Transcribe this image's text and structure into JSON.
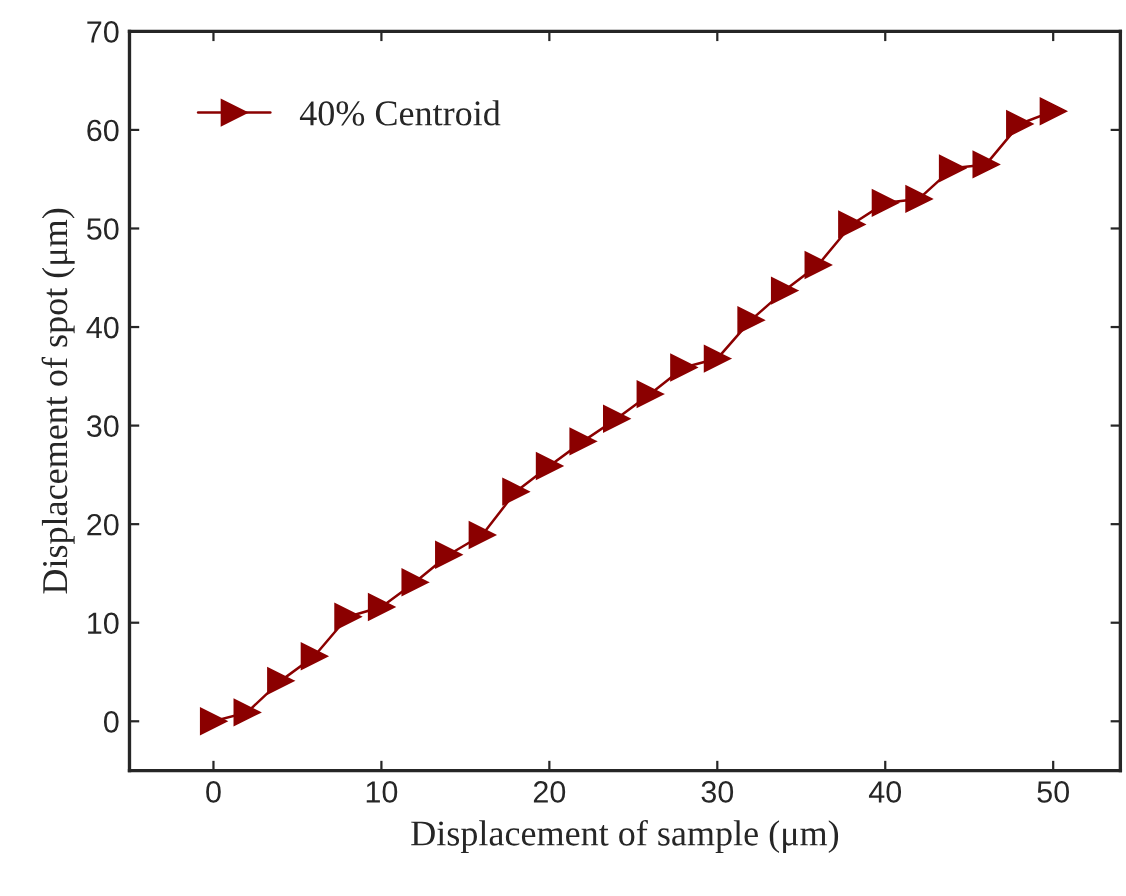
{
  "chart_data": {
    "type": "line",
    "xlabel": "Displacement of sample (μm)",
    "ylabel": "Displacement of spot (μm)",
    "x": [
      0,
      2,
      4,
      6,
      8,
      10,
      12,
      14,
      16,
      18,
      20,
      22,
      24,
      26,
      28,
      30,
      32,
      34,
      36,
      38,
      40,
      42,
      44,
      46,
      48,
      50
    ],
    "series": [
      {
        "name": "40% Centroid",
        "color": "#8b0000",
        "values": [
          0,
          0.9,
          4.1,
          6.6,
          10.6,
          11.6,
          14.1,
          16.9,
          18.9,
          23.3,
          25.9,
          28.4,
          30.7,
          33.2,
          35.9,
          36.8,
          40.7,
          43.7,
          46.3,
          50.4,
          52.6,
          53.0,
          56.1,
          56.5,
          60.6,
          61.9
        ]
      }
    ],
    "xlim": [
      -5,
      54
    ],
    "xticks": [
      0,
      10,
      20,
      30,
      40,
      50
    ],
    "ylim": [
      -5,
      70
    ],
    "yticks": [
      0,
      10,
      20,
      30,
      40,
      50,
      60,
      70
    ],
    "marker": "triangle",
    "line_style": "solid",
    "legend": "top left",
    "grid": false
  }
}
